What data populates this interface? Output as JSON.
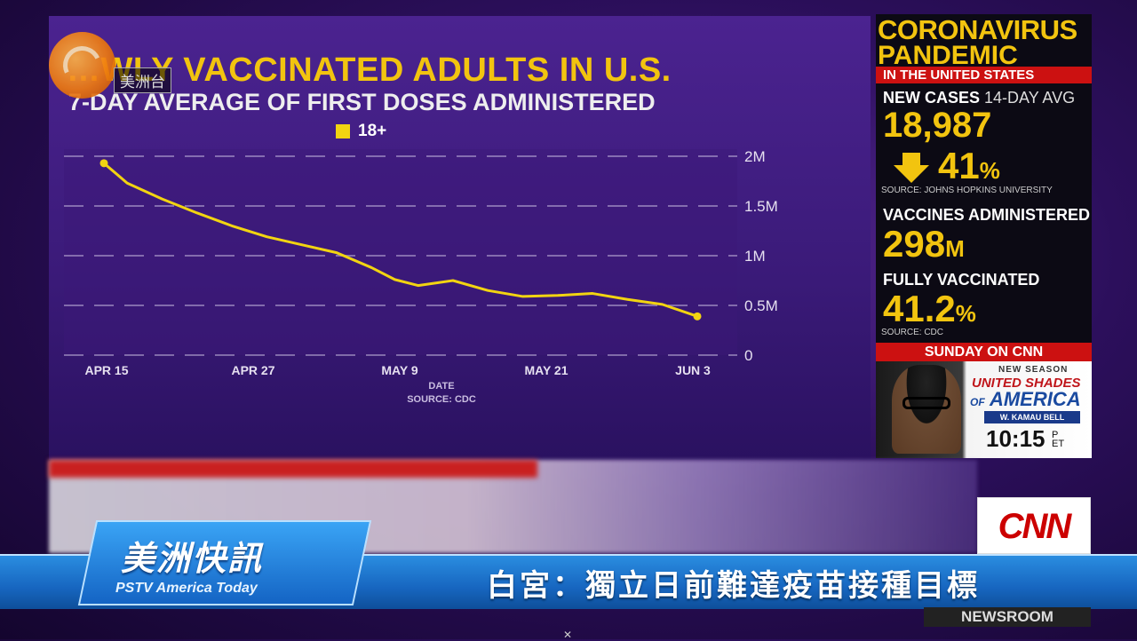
{
  "chart_data": {
    "type": "line",
    "title": "…WLY VACCINATED ADULTS IN U.S.",
    "subtitle": "7-DAY AVERAGE OF FIRST DOSES ADMINISTERED",
    "legend": [
      "18+"
    ],
    "xlabel": "DATE",
    "source": "SOURCE: CDC",
    "x_ticks": [
      "APR 15",
      "APR 27",
      "MAY 9",
      "MAY 21",
      "JUN 3"
    ],
    "y_ticks": [
      "2M",
      "1.5M",
      "1M",
      "0.5M",
      "0"
    ],
    "ylim": [
      0,
      2000000
    ],
    "grid": true,
    "series": [
      {
        "name": "18+",
        "color": "#f2d411",
        "x": [
          "Apr 13",
          "Apr 15",
          "Apr 18",
          "Apr 21",
          "Apr 24",
          "Apr 27",
          "Apr 30",
          "May 3",
          "May 6",
          "May 8",
          "May 10",
          "May 13",
          "May 16",
          "May 19",
          "May 22",
          "May 25",
          "May 28",
          "May 31",
          "Jun 3"
        ],
        "y": [
          1930000,
          1730000,
          1570000,
          1430000,
          1300000,
          1190000,
          1110000,
          1030000,
          880000,
          760000,
          700000,
          750000,
          650000,
          590000,
          600000,
          620000,
          560000,
          510000,
          390000
        ]
      }
    ]
  },
  "logo": {
    "channel_text": "美洲台"
  },
  "sidebar": {
    "title_line1": "CORONAVIRUS",
    "title_line2": "PANDEMIC",
    "region": "IN THE UNITED STATES",
    "new_cases_label": "NEW CASES",
    "new_cases_sub": "14-DAY AVG",
    "new_cases_value": "18,987",
    "change_value": "41",
    "change_unit": "%",
    "change_icon": "down-arrow-icon",
    "change_source": "SOURCE: JOHNS HOPKINS UNIVERSITY",
    "vaccines_label": "VACCINES ADMINISTERED",
    "vaccines_value": "298",
    "vaccines_unit": "M",
    "fully_label": "FULLY VACCINATED",
    "fully_value": "41.2",
    "fully_unit": "%",
    "fully_source": "SOURCE: CDC",
    "promo_header": "SUNDAY ON CNN",
    "promo_new_season": "NEW SEASON",
    "promo_show_line1": "UNITED SHADES",
    "promo_show_line2": "AMERICA",
    "promo_show_of": "OF",
    "promo_host": "W. KAMAU BELL",
    "promo_time": "10:15",
    "promo_tz_p": "P",
    "promo_tz_et": "ET"
  },
  "lower_third": {
    "brand_main": "美洲快訊",
    "brand_sub": "PSTV America Today",
    "headline": "白宮：獨立日前難達疫苗接種目標",
    "cnn_logo": "CNN",
    "newsroom": "NEWSROOM"
  }
}
